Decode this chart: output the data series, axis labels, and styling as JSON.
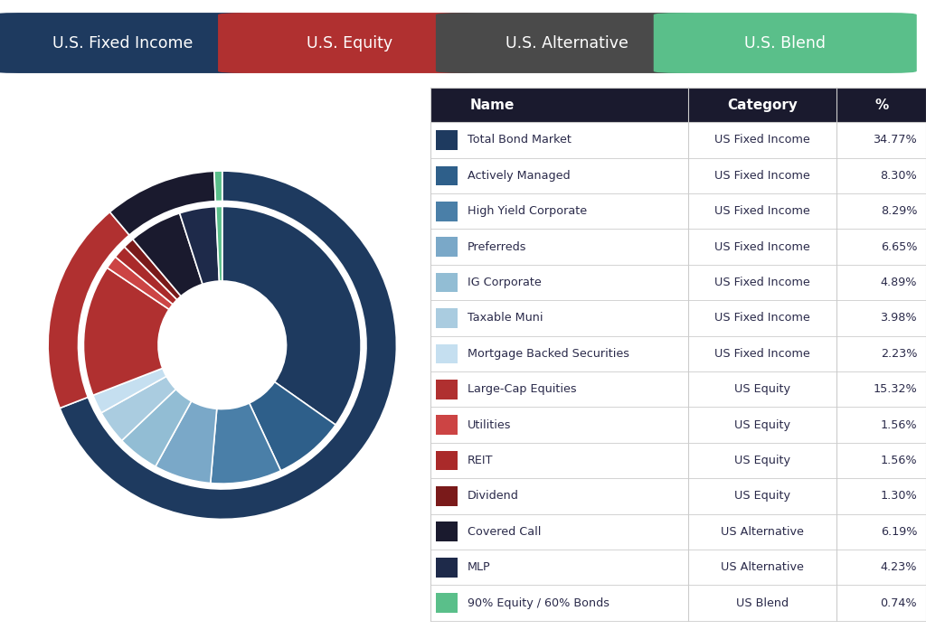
{
  "holdings": [
    {
      "name": "Total Bond Market",
      "category": "US Fixed Income",
      "pct": 34.77,
      "color": "#1e3a5f"
    },
    {
      "name": "Actively Managed",
      "category": "US Fixed Income",
      "pct": 8.3,
      "color": "#2e5f8a"
    },
    {
      "name": "High Yield Corporate",
      "category": "US Fixed Income",
      "pct": 8.29,
      "color": "#4a7fa8"
    },
    {
      "name": "Preferreds",
      "category": "US Fixed Income",
      "pct": 6.65,
      "color": "#7aa8c8"
    },
    {
      "name": "IG Corporate",
      "category": "US Fixed Income",
      "pct": 4.89,
      "color": "#92bdd4"
    },
    {
      "name": "Taxable Muni",
      "category": "US Fixed Income",
      "pct": 3.98,
      "color": "#aacce0"
    },
    {
      "name": "Mortgage Backed Securities",
      "category": "US Fixed Income",
      "pct": 2.23,
      "color": "#c5dff0"
    },
    {
      "name": "Large-Cap Equities",
      "category": "US Equity",
      "pct": 15.32,
      "color": "#b03030"
    },
    {
      "name": "Utilities",
      "category": "US Equity",
      "pct": 1.56,
      "color": "#cc4444"
    },
    {
      "name": "REIT",
      "category": "US Equity",
      "pct": 1.56,
      "color": "#aa2a2a"
    },
    {
      "name": "Dividend",
      "category": "US Equity",
      "pct": 1.3,
      "color": "#7a1a1a"
    },
    {
      "name": "Covered Call",
      "category": "US Alternative",
      "pct": 6.19,
      "color": "#1a1a2e"
    },
    {
      "name": "MLP",
      "category": "US Alternative",
      "pct": 4.23,
      "color": "#1e2a4a"
    },
    {
      "name": "90% Equity / 60% Bonds",
      "category": "US Blend",
      "pct": 0.74,
      "color": "#5abf8a"
    }
  ],
  "category_buttons": [
    {
      "label": "U.S. Fixed Income",
      "color": "#1e3a5f"
    },
    {
      "label": "U.S. Equity",
      "color": "#b03030"
    },
    {
      "label": "U.S. Alternative",
      "color": "#4a4a4a"
    },
    {
      "label": "U.S. Blend",
      "color": "#5abf8a"
    }
  ],
  "cat_colors": {
    "US Fixed Income": "#1e3a5f",
    "US Equity": "#b03030",
    "US Alternative": "#1a1a2e",
    "US Blend": "#5abf8a"
  },
  "cat_order": [
    "US Fixed Income",
    "US Equity",
    "US Alternative",
    "US Blend"
  ],
  "bg_color": "#ffffff",
  "table_header_bg": "#1a1a2e",
  "table_header_fg": "#ffffff",
  "table_row_fg": "#2a2a4a",
  "table_divider": "#cccccc",
  "wedge_edge_color": "#ffffff"
}
